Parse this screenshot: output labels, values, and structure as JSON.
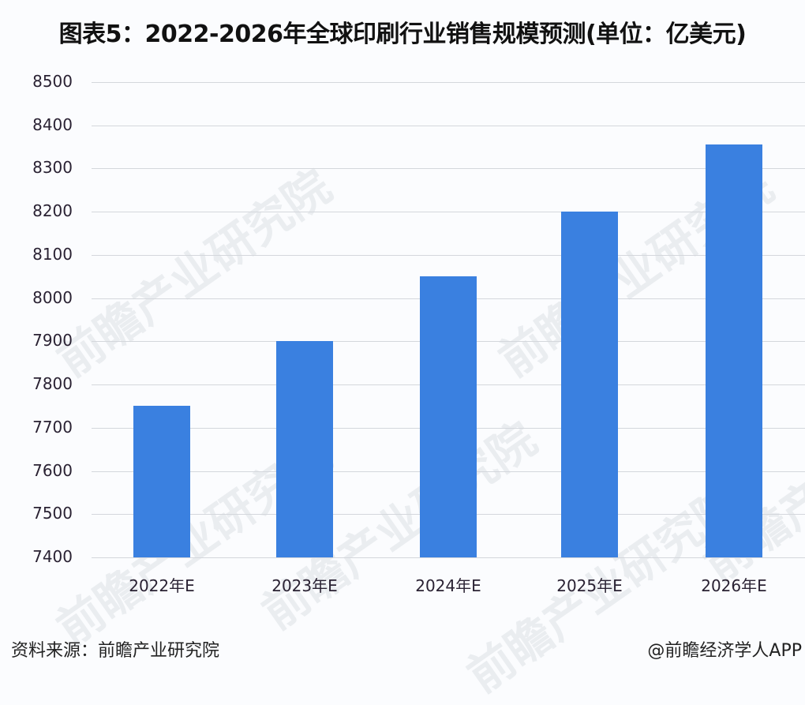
{
  "title": "图表5：2022-2026年全球印刷行业销售规模预测(单位：亿美元)",
  "footer": {
    "source": "资料来源：前瞻产业研究院",
    "credit": "@前瞻经济学人APP"
  },
  "watermark": "前瞻产业研究院",
  "colors": {
    "bar": "#3a80e0",
    "grid": "#d4d7dc"
  },
  "chart_data": {
    "type": "bar",
    "title": "图表5：2022-2026年全球印刷行业销售规模预测(单位：亿美元)",
    "xlabel": "",
    "ylabel": "亿美元",
    "categories": [
      "2022年E",
      "2023年E",
      "2024年E",
      "2025年E",
      "2026年E"
    ],
    "values": [
      7750,
      7900,
      8050,
      8200,
      8355
    ],
    "ylim": [
      7400,
      8500
    ],
    "yticks": [
      8500,
      8400,
      8300,
      8200,
      8100,
      8000,
      7900,
      7800,
      7700,
      7600,
      7500,
      7400
    ],
    "grid": true,
    "legend": null
  }
}
